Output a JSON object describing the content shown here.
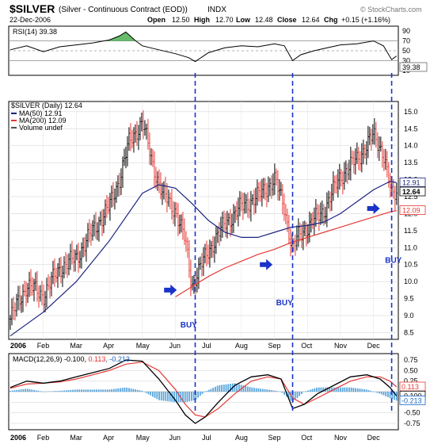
{
  "header": {
    "symbol": "$SILVER",
    "description": "(Silver - Continuous Contract (EOD))",
    "exchange": "INDX",
    "date": "22-Dec-2006",
    "open_label": "Open",
    "open": "12.50",
    "high_label": "High",
    "high": "12.70",
    "low_label": "Low",
    "low": "12.48",
    "close_label": "Close",
    "close": "12.64",
    "chg_label": "Chg",
    "chg": "+0.15 (+1.16%)",
    "watermark": "© StockCharts.com"
  },
  "rsi_panel": {
    "label": "RSI(14) 39.38",
    "last_value": "39.38",
    "ticks": [
      "90",
      "70",
      "50",
      "30",
      "10"
    ]
  },
  "price_panel": {
    "legend_title": "$SILVER (Daily) 12.64",
    "legend": [
      {
        "text": "MA(50) 12.91",
        "color": "#1a237e"
      },
      {
        "text": "MA(200) 12.09",
        "color": "#e53935"
      },
      {
        "text": "Volume undef",
        "color": "#555555"
      }
    ],
    "y_ticks": [
      "15.0",
      "14.5",
      "14.0",
      "13.5",
      "13.0",
      "12.5",
      "12.0",
      "11.5",
      "11.0",
      "10.5",
      "10.0",
      "9.5",
      "9.0",
      "8.5"
    ],
    "value_tags": [
      {
        "text": "12.91",
        "value": 12.91,
        "color": "#1a237e",
        "bold": false
      },
      {
        "text": "12.64",
        "value": 12.64,
        "color": "#000000",
        "bold": true
      },
      {
        "text": "12.09",
        "value": 12.09,
        "color": "#e53935",
        "bold": false
      }
    ],
    "annotations": [
      {
        "text": "BUY",
        "month_index": 5.15,
        "price": 8.65
      },
      {
        "text": "BUY",
        "month_index": 8.05,
        "price": 9.3
      },
      {
        "text": "BUY",
        "month_index": 11.35,
        "price": 10.55
      }
    ],
    "arrows": [
      {
        "month_index": 4.85,
        "price": 9.75
      },
      {
        "month_index": 7.75,
        "price": 10.5
      },
      {
        "month_index": 11.0,
        "price": 12.15
      }
    ],
    "dashed_lines_month_index": [
      5.6,
      8.55,
      11.55
    ]
  },
  "macd_panel": {
    "label": "MACD(12,26,9) -0.100, 0.113, -0.213",
    "label_parts": [
      "MACD(12,26,9) -0.100, ",
      "0.113",
      ", -0.213"
    ],
    "ticks": [
      "0.75",
      "0.50",
      "0.25",
      "0.00",
      "-0.25",
      "-0.50",
      "-0.75"
    ],
    "value_tags": [
      {
        "text": "0.113",
        "value": 0.113,
        "color": "#e53935"
      },
      {
        "text": "-0.100",
        "value": -0.1,
        "color": "#000000"
      },
      {
        "text": "-0.213",
        "value": -0.213,
        "color": "#1565c0"
      }
    ]
  },
  "x_axis": {
    "labels": [
      "2006",
      "Feb",
      "Mar",
      "Apr",
      "May",
      "Jun",
      "Jul",
      "Aug",
      "Sep",
      "Oct",
      "Nov",
      "Dec"
    ]
  },
  "colors": {
    "up_bar": "#000000",
    "down_bar": "#e53935",
    "ma50": "#1a237e",
    "ma200": "#e53935",
    "rsi_line": "#000000",
    "rsi_fill": "#4caf50",
    "macd_line": "#000000",
    "signal_line": "#e53935",
    "histogram": "#5aa6dc",
    "dashed": "#1a33c9",
    "buy_text": "#1a33c9",
    "grid": "#cfcfcf"
  },
  "chart_data": {
    "type": "line",
    "x_unit": "months since 1-Jan-2006 (0 = Jan 2006)",
    "price_close": {
      "x": [
        0,
        0.5,
        1,
        1.5,
        2,
        2.5,
        3,
        3.3,
        3.6,
        4,
        4.3,
        4.6,
        5,
        5.3,
        5.5,
        5.7,
        6,
        6.5,
        7,
        7.5,
        8,
        8.3,
        8.55,
        8.7,
        9,
        9.5,
        10,
        10.5,
        11,
        11.3,
        11.55,
        11.7
      ],
      "y": [
        8.9,
        9.9,
        9.6,
        10.4,
        10.7,
        11.5,
        12.2,
        13.0,
        14.1,
        14.7,
        13.5,
        12.6,
        12.1,
        11.2,
        9.9,
        10.3,
        10.9,
        11.7,
        12.2,
        12.5,
        13.0,
        12.2,
        10.9,
        11.3,
        11.6,
        12.1,
        13.1,
        13.6,
        14.3,
        13.8,
        12.5,
        12.64
      ]
    },
    "ma50": {
      "x": [
        0,
        1,
        2,
        3,
        4,
        4.5,
        5,
        5.5,
        6,
        6.5,
        7,
        7.5,
        8,
        8.5,
        9,
        9.5,
        10,
        10.5,
        11,
        11.5,
        11.7
      ],
      "y": [
        8.4,
        9.1,
        10.0,
        11.2,
        12.6,
        12.85,
        12.75,
        12.3,
        11.8,
        11.45,
        11.3,
        11.3,
        11.45,
        11.6,
        11.65,
        11.75,
        12.0,
        12.35,
        12.7,
        12.95,
        12.91
      ]
    },
    "ma200": {
      "x": [
        5.0,
        5.5,
        6,
        6.5,
        7,
        7.5,
        8,
        8.5,
        9,
        9.5,
        10,
        10.5,
        11,
        11.5,
        11.7
      ],
      "y": [
        9.55,
        9.85,
        10.15,
        10.4,
        10.6,
        10.8,
        10.95,
        11.15,
        11.3,
        11.45,
        11.6,
        11.75,
        11.9,
        12.05,
        12.09
      ]
    },
    "rsi": {
      "x": [
        0,
        0.5,
        1,
        1.5,
        2,
        2.5,
        3,
        3.3,
        3.5,
        3.8,
        4,
        4.5,
        5,
        5.4,
        5.6,
        6,
        6.5,
        7,
        7.5,
        8,
        8.3,
        8.55,
        8.8,
        9.2,
        9.6,
        10,
        10.5,
        11,
        11.3,
        11.55,
        11.7
      ],
      "y": [
        52,
        60,
        48,
        58,
        62,
        66,
        72,
        80,
        88,
        70,
        60,
        52,
        44,
        36,
        28,
        46,
        56,
        60,
        58,
        64,
        60,
        30,
        42,
        50,
        56,
        62,
        64,
        70,
        60,
        32,
        39.38
      ]
    },
    "macd": {
      "x": [
        0,
        0.5,
        1,
        1.5,
        2,
        2.5,
        3,
        3.5,
        4,
        4.5,
        5,
        5.3,
        5.6,
        5.9,
        6.3,
        6.8,
        7.3,
        7.8,
        8.2,
        8.55,
        8.9,
        9.3,
        9.8,
        10.3,
        10.8,
        11.2,
        11.5,
        11.7
      ],
      "y": [
        0.1,
        0.25,
        0.2,
        0.25,
        0.35,
        0.45,
        0.55,
        0.75,
        0.72,
        0.3,
        -0.2,
        -0.55,
        -0.75,
        -0.6,
        -0.25,
        0.15,
        0.35,
        0.4,
        0.3,
        -0.4,
        -0.3,
        -0.05,
        0.15,
        0.35,
        0.4,
        0.3,
        0.1,
        -0.1
      ]
    },
    "signal": {
      "x": [
        0,
        0.5,
        1,
        1.5,
        2,
        2.5,
        3,
        3.5,
        4,
        4.5,
        5,
        5.3,
        5.6,
        5.9,
        6.3,
        6.8,
        7.3,
        7.8,
        8.2,
        8.55,
        8.9,
        9.3,
        9.8,
        10.3,
        10.8,
        11.2,
        11.5,
        11.7
      ],
      "y": [
        0.08,
        0.18,
        0.2,
        0.23,
        0.3,
        0.4,
        0.5,
        0.65,
        0.7,
        0.5,
        0.05,
        -0.3,
        -0.55,
        -0.6,
        -0.4,
        -0.05,
        0.25,
        0.35,
        0.3,
        -0.15,
        -0.3,
        -0.15,
        0.05,
        0.25,
        0.35,
        0.35,
        0.25,
        0.113
      ]
    },
    "price_ylim": [
      8.3,
      15.3
    ],
    "rsi_ylim": [
      0,
      100
    ],
    "macd_ylim": [
      -0.9,
      0.9
    ]
  }
}
